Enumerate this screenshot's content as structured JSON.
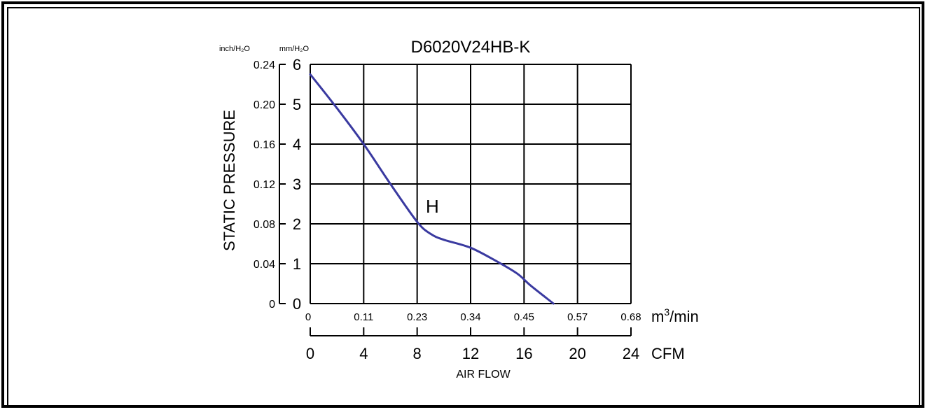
{
  "chart_data": {
    "type": "line",
    "title": "D6020V24HB-K",
    "xlabel": "AIR FLOW",
    "ylabel": "STATIC PRESSURE",
    "y_axes": {
      "left_unit": "inch/H₂O",
      "right_unit": "mm/H₂O",
      "left_ticks": [
        "0",
        "0.04",
        "0.08",
        "0.12",
        "0.16",
        "0.20",
        "0.24"
      ],
      "right_ticks": [
        "0",
        "1",
        "2",
        "3",
        "4",
        "5",
        "6"
      ],
      "ylim": [
        0,
        6
      ]
    },
    "x_axes": {
      "top_unit_base": "m",
      "top_unit_sup": "3",
      "top_unit_tail": "/min",
      "top_ticks": [
        "0",
        "0.11",
        "0.23",
        "0.34",
        "0.45",
        "0.57",
        "0.68"
      ],
      "bottom_unit": "CFM",
      "bottom_ticks": [
        "0",
        "4",
        "8",
        "12",
        "16",
        "20",
        "24"
      ],
      "xlim": [
        0,
        24
      ]
    },
    "grid": true,
    "series": [
      {
        "name": "H",
        "color": "#3a3aa0",
        "x_cfm": [
          0,
          2,
          4,
          6,
          8,
          9,
          10,
          12,
          14,
          15.5,
          16.5,
          18.2
        ],
        "y_mmH2O": [
          5.75,
          4.9,
          4.0,
          3.0,
          2.05,
          1.75,
          1.6,
          1.4,
          1.05,
          0.75,
          0.45,
          0
        ]
      }
    ]
  }
}
